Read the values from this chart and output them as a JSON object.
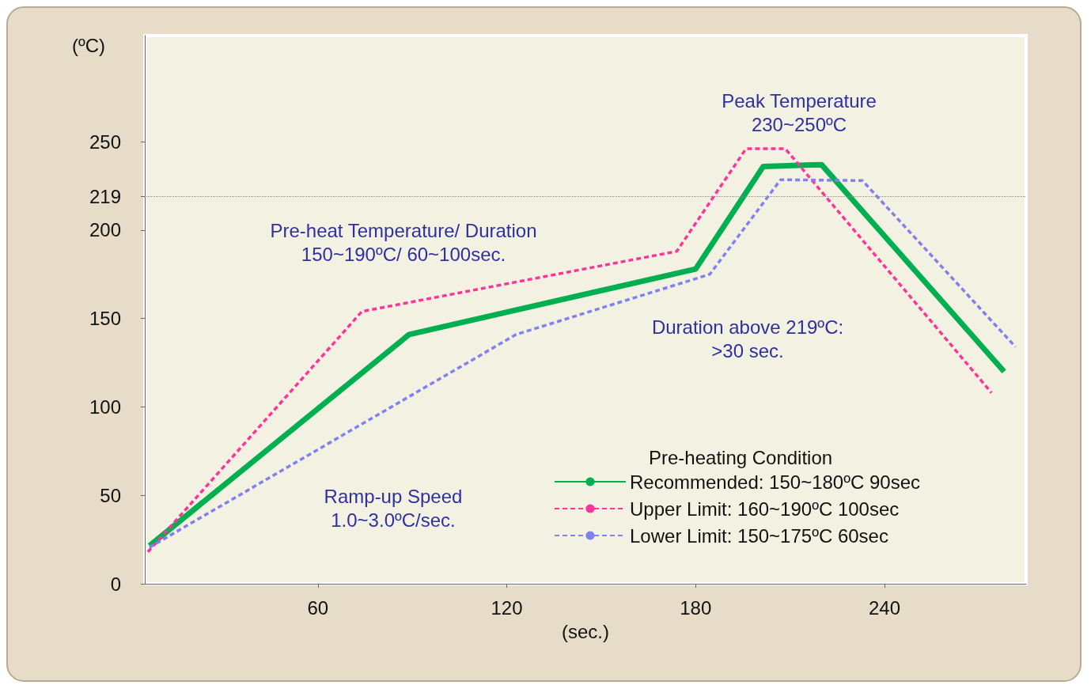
{
  "chart_data": {
    "type": "line",
    "xlabel": "(sec.)",
    "ylabel": "(ºC)",
    "legend_title": "Pre-heating Condition",
    "legend": "bottom right",
    "marker": "none",
    "grid": false,
    "xlim": [
      5,
      285
    ],
    "xticks": [
      60,
      120,
      180,
      240
    ],
    "ylim": [
      0,
      310
    ],
    "yticks": [
      0,
      50,
      100,
      150,
      200,
      219,
      250
    ],
    "ref_lines": [
      {
        "axis": "y",
        "value": 219,
        "label": null,
        "color": "#888888",
        "line_style": "dotted"
      }
    ],
    "annotations": [
      "Peak Temperature\n230~250ºC",
      "Pre-heat Temperature/ Duration\n150~190ºC/ 60~100sec.",
      "Duration above 219ºC:\n>30 sec.",
      "Ramp-up Speed\n1.0~3.0ºC/sec."
    ],
    "series": [
      {
        "name": "Recommended: 150~180ºC 90sec",
        "color": "#00b050",
        "line_style": "solid",
        "x": [
          6.5,
          89,
          180,
          201.5,
          220,
          278
        ],
        "values": [
          21.5,
          141,
          178,
          236,
          237,
          120
        ]
      },
      {
        "name": "Upper Limit: 160~190ºC 100sec",
        "color": "#ff3399",
        "line_style": "dashed",
        "x": [
          6,
          74,
          174,
          196,
          208.5,
          274
        ],
        "values": [
          18,
          154,
          188,
          246,
          246,
          108
        ]
      },
      {
        "name": "Lower Limit: 150~175ºC 60sec",
        "color": "#8080ee",
        "line_style": "dashed",
        "x": [
          6.5,
          123,
          184.5,
          207,
          233,
          281.6
        ],
        "values": [
          20.6,
          141,
          175,
          228.5,
          228,
          134
        ]
      }
    ]
  }
}
